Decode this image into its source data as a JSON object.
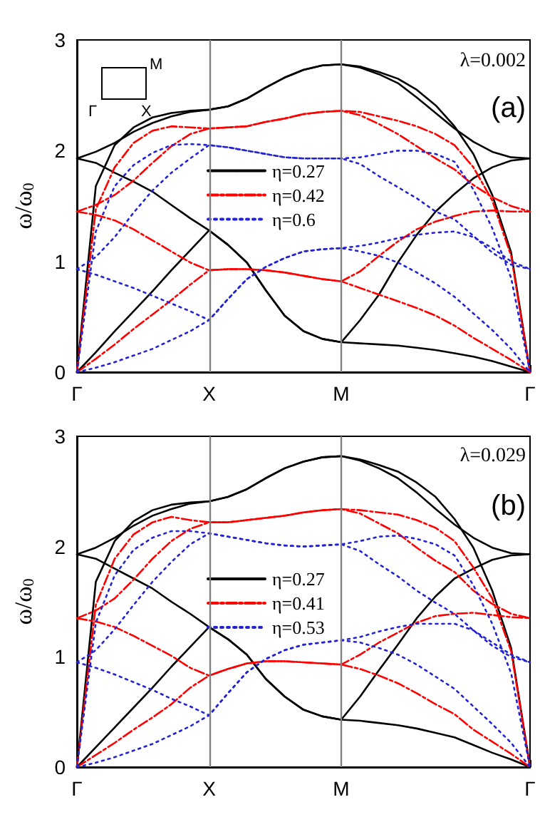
{
  "chart_data": [
    {
      "type": "line",
      "ylabel": "ω/ω$_{0}$",
      "categories": [
        "Γ",
        null,
        null,
        null,
        null,
        null,
        null,
        "X",
        null,
        null,
        null,
        null,
        null,
        null,
        "M",
        null,
        null,
        null,
        null,
        null,
        null,
        null,
        null,
        null,
        "Γ"
      ],
      "ylim": [
        0,
        3
      ],
      "yticks": [
        0,
        1,
        2,
        3
      ],
      "legend": "center",
      "marker": "none",
      "annotations": [
        "Γ",
        "X",
        "M",
        "λ=0.002",
        "(a)"
      ],
      "ref_lines": [
        {
          "axis": "x",
          "value": "X",
          "color": "#808080"
        },
        {
          "axis": "x",
          "value": "M",
          "color": "#808080"
        }
      ],
      "series": [
        {
          "name": "η=0.27",
          "color": "#000000",
          "line_style": "solid",
          "values": [
            0,
            0.18,
            0.37,
            0.55,
            0.73,
            0.92,
            1.1,
            1.28,
            1.15,
            0.99,
            0.74,
            0.51,
            0.37,
            0.3,
            0.27,
            0.26,
            0.25,
            0.24,
            0.22,
            0.2,
            0.17,
            0.14,
            0.1,
            0.05,
            0
          ]
        },
        {
          "color": "#000000",
          "line_style": "solid",
          "values": [
            1.93,
            1.89,
            1.8,
            1.72,
            1.63,
            1.51,
            1.39,
            1.28,
            1.15,
            0.99,
            0.74,
            0.51,
            0.37,
            0.3,
            0.27,
            0.47,
            0.7,
            0.99,
            1.24,
            1.45,
            1.61,
            1.75,
            1.85,
            1.91,
            1.93
          ]
        },
        {
          "color": "#000000",
          "line_style": "solid",
          "values": [
            0,
            1.68,
            2.05,
            2.21,
            2.3,
            2.34,
            2.36,
            2.37,
            2.4,
            2.47,
            2.57,
            2.66,
            2.73,
            2.77,
            2.78,
            2.75,
            2.69,
            2.61,
            2.48,
            2.34,
            2.2,
            2.08,
            1.99,
            1.94,
            1.93
          ]
        },
        {
          "color": "#000000",
          "line_style": "solid",
          "values": [
            1.93,
            1.99,
            2.07,
            2.17,
            2.25,
            2.31,
            2.35,
            2.37,
            2.4,
            2.47,
            2.57,
            2.66,
            2.73,
            2.77,
            2.78,
            2.76,
            2.71,
            2.65,
            2.55,
            2.41,
            2.22,
            1.97,
            1.6,
            1.08,
            0
          ]
        },
        {
          "name": "η=0.42",
          "color": "#ff0000",
          "line_style": "dashed",
          "values": [
            0,
            0.12,
            0.25,
            0.39,
            0.52,
            0.65,
            0.79,
            0.92,
            0.93,
            0.93,
            0.92,
            0.9,
            0.87,
            0.84,
            0.82,
            0.76,
            0.7,
            0.64,
            0.58,
            0.51,
            0.42,
            0.31,
            0.21,
            0.11,
            0
          ]
        },
        {
          "color": "#ff0000",
          "line_style": "dashed",
          "values": [
            1.45,
            1.42,
            1.37,
            1.29,
            1.19,
            1.09,
            0.99,
            0.92,
            0.93,
            0.93,
            0.92,
            0.9,
            0.87,
            0.84,
            0.82,
            0.91,
            1.05,
            1.18,
            1.29,
            1.36,
            1.41,
            1.45,
            1.46,
            1.45,
            1.45
          ]
        },
        {
          "color": "#ff0000",
          "line_style": "dashed",
          "values": [
            0,
            1.47,
            1.85,
            2.07,
            2.18,
            2.22,
            2.21,
            2.2,
            2.21,
            2.22,
            2.26,
            2.29,
            2.33,
            2.35,
            2.36,
            2.32,
            2.24,
            2.15,
            2.04,
            1.93,
            1.83,
            1.69,
            1.58,
            1.5,
            1.45
          ]
        },
        {
          "color": "#ff0000",
          "line_style": "dashed",
          "values": [
            1.45,
            1.51,
            1.6,
            1.73,
            1.89,
            2.04,
            2.15,
            2.2,
            2.21,
            2.22,
            2.26,
            2.29,
            2.33,
            2.35,
            2.36,
            2.35,
            2.31,
            2.27,
            2.22,
            2.15,
            2.05,
            1.85,
            1.55,
            1.05,
            0
          ]
        },
        {
          "name": "η=0.6",
          "color": "#2323d2",
          "line_style": "dotted",
          "values": [
            0,
            0.04,
            0.09,
            0.15,
            0.21,
            0.29,
            0.37,
            0.47,
            0.66,
            0.84,
            0.95,
            1.03,
            1.09,
            1.11,
            1.12,
            1.09,
            1.05,
            0.99,
            0.9,
            0.8,
            0.68,
            0.53,
            0.38,
            0.21,
            0
          ]
        },
        {
          "color": "#2323d2",
          "line_style": "dotted",
          "values": [
            0.93,
            0.88,
            0.82,
            0.76,
            0.69,
            0.62,
            0.55,
            0.47,
            0.66,
            0.84,
            0.95,
            1.03,
            1.09,
            1.11,
            1.12,
            1.14,
            1.17,
            1.21,
            1.24,
            1.26,
            1.27,
            1.22,
            1.12,
            1.0,
            0.93
          ]
        },
        {
          "color": "#2323d2",
          "line_style": "dotted",
          "values": [
            0,
            1.27,
            1.68,
            1.87,
            1.98,
            2.05,
            2.06,
            2.05,
            2.03,
            2.0,
            1.97,
            1.94,
            1.93,
            1.93,
            1.93,
            1.88,
            1.77,
            1.67,
            1.57,
            1.45,
            1.38,
            1.23,
            1.08,
            0.97,
            0.93
          ]
        },
        {
          "color": "#2323d2",
          "line_style": "dotted",
          "values": [
            0.93,
            1.04,
            1.22,
            1.44,
            1.64,
            1.8,
            1.93,
            2.05,
            2.03,
            2.0,
            1.97,
            1.94,
            1.93,
            1.93,
            1.93,
            1.94,
            1.97,
            2.0,
            2.0,
            1.97,
            1.9,
            1.65,
            1.3,
            0.85,
            0
          ]
        }
      ]
    },
    {
      "type": "line",
      "ylabel": "ω/ω$_{0}$",
      "categories": [
        "Γ",
        null,
        null,
        null,
        null,
        null,
        null,
        "X",
        null,
        null,
        null,
        null,
        null,
        null,
        "M",
        null,
        null,
        null,
        null,
        null,
        null,
        null,
        null,
        null,
        "Γ"
      ],
      "ylim": [
        0,
        3
      ],
      "yticks": [
        0,
        1,
        2,
        3
      ],
      "legend": "center",
      "marker": "none",
      "annotations": [
        "λ=0.029",
        "(b)"
      ],
      "ref_lines": [
        {
          "axis": "x",
          "value": "X",
          "color": "#808080"
        },
        {
          "axis": "x",
          "value": "M",
          "color": "#808080"
        }
      ],
      "series": [
        {
          "name": "η=0.27",
          "color": "#000000",
          "line_style": "solid",
          "values": [
            0,
            0.18,
            0.36,
            0.54,
            0.72,
            0.91,
            1.09,
            1.27,
            1.16,
            1.02,
            0.8,
            0.64,
            0.52,
            0.46,
            0.43,
            0.42,
            0.4,
            0.38,
            0.35,
            0.31,
            0.27,
            0.2,
            0.13,
            0.07,
            0
          ]
        },
        {
          "color": "#000000",
          "line_style": "solid",
          "values": [
            1.93,
            1.89,
            1.8,
            1.71,
            1.62,
            1.5,
            1.39,
            1.27,
            1.16,
            1.02,
            0.8,
            0.64,
            0.52,
            0.46,
            0.43,
            0.64,
            0.88,
            1.11,
            1.35,
            1.55,
            1.71,
            1.8,
            1.88,
            1.92,
            1.93
          ]
        },
        {
          "color": "#000000",
          "line_style": "solid",
          "values": [
            0,
            1.68,
            2.05,
            2.23,
            2.33,
            2.38,
            2.4,
            2.41,
            2.45,
            2.52,
            2.62,
            2.71,
            2.77,
            2.81,
            2.82,
            2.78,
            2.71,
            2.62,
            2.49,
            2.34,
            2.2,
            2.08,
            1.99,
            1.94,
            1.93
          ]
        },
        {
          "color": "#000000",
          "line_style": "solid",
          "values": [
            1.93,
            1.99,
            2.08,
            2.19,
            2.28,
            2.34,
            2.39,
            2.41,
            2.45,
            2.52,
            2.62,
            2.71,
            2.77,
            2.81,
            2.82,
            2.79,
            2.74,
            2.68,
            2.58,
            2.45,
            2.25,
            1.99,
            1.6,
            1.08,
            0
          ]
        },
        {
          "name": "η=0.41",
          "color": "#ff0000",
          "line_style": "dashed",
          "values": [
            0,
            0.11,
            0.22,
            0.34,
            0.45,
            0.57,
            0.72,
            0.83,
            0.89,
            0.94,
            0.96,
            0.96,
            0.95,
            0.94,
            0.93,
            0.89,
            0.83,
            0.76,
            0.67,
            0.57,
            0.48,
            0.34,
            0.23,
            0.12,
            0
          ]
        },
        {
          "color": "#ff0000",
          "line_style": "dashed",
          "values": [
            1.35,
            1.32,
            1.27,
            1.19,
            1.1,
            1.01,
            0.9,
            0.83,
            0.89,
            0.94,
            0.96,
            0.96,
            0.95,
            0.94,
            0.93,
            1.02,
            1.13,
            1.22,
            1.31,
            1.37,
            1.39,
            1.4,
            1.38,
            1.36,
            1.35
          ]
        },
        {
          "color": "#ff0000",
          "line_style": "dashed",
          "values": [
            0,
            1.47,
            1.89,
            2.11,
            2.22,
            2.27,
            2.24,
            2.22,
            2.22,
            2.24,
            2.26,
            2.28,
            2.31,
            2.33,
            2.34,
            2.3,
            2.21,
            2.12,
            1.99,
            1.87,
            1.77,
            1.6,
            1.48,
            1.39,
            1.35
          ]
        },
        {
          "color": "#ff0000",
          "line_style": "dashed",
          "values": [
            1.35,
            1.42,
            1.53,
            1.7,
            1.89,
            2.05,
            2.16,
            2.22,
            2.22,
            2.24,
            2.26,
            2.28,
            2.31,
            2.33,
            2.34,
            2.33,
            2.31,
            2.29,
            2.24,
            2.17,
            2.05,
            1.81,
            1.53,
            1.05,
            0
          ]
        },
        {
          "name": "η=0.53",
          "color": "#2323d2",
          "line_style": "dotted",
          "values": [
            0,
            0.04,
            0.09,
            0.15,
            0.21,
            0.29,
            0.37,
            0.47,
            0.67,
            0.86,
            0.98,
            1.06,
            1.11,
            1.13,
            1.15,
            1.13,
            1.08,
            1.02,
            0.93,
            0.82,
            0.71,
            0.55,
            0.39,
            0.22,
            0
          ]
        },
        {
          "color": "#2323d2",
          "line_style": "dotted",
          "values": [
            0.95,
            0.9,
            0.84,
            0.77,
            0.7,
            0.62,
            0.55,
            0.47,
            0.67,
            0.86,
            0.98,
            1.06,
            1.11,
            1.13,
            1.15,
            1.18,
            1.23,
            1.27,
            1.3,
            1.3,
            1.3,
            1.24,
            1.13,
            1.02,
            0.95
          ]
        },
        {
          "color": "#2323d2",
          "line_style": "dotted",
          "values": [
            0,
            1.31,
            1.74,
            1.97,
            2.08,
            2.14,
            2.14,
            2.12,
            2.09,
            2.06,
            2.03,
            2.01,
            2.0,
            2.01,
            2.02,
            1.96,
            1.84,
            1.73,
            1.6,
            1.49,
            1.39,
            1.24,
            1.1,
            1.0,
            0.95
          ]
        },
        {
          "color": "#2323d2",
          "line_style": "dotted",
          "values": [
            0.95,
            1.06,
            1.25,
            1.47,
            1.68,
            1.86,
            2.02,
            2.12,
            2.09,
            2.06,
            2.03,
            2.01,
            2.0,
            2.01,
            2.02,
            2.05,
            2.09,
            2.1,
            2.07,
            2.02,
            1.92,
            1.65,
            1.3,
            0.85,
            0
          ]
        }
      ]
    }
  ]
}
